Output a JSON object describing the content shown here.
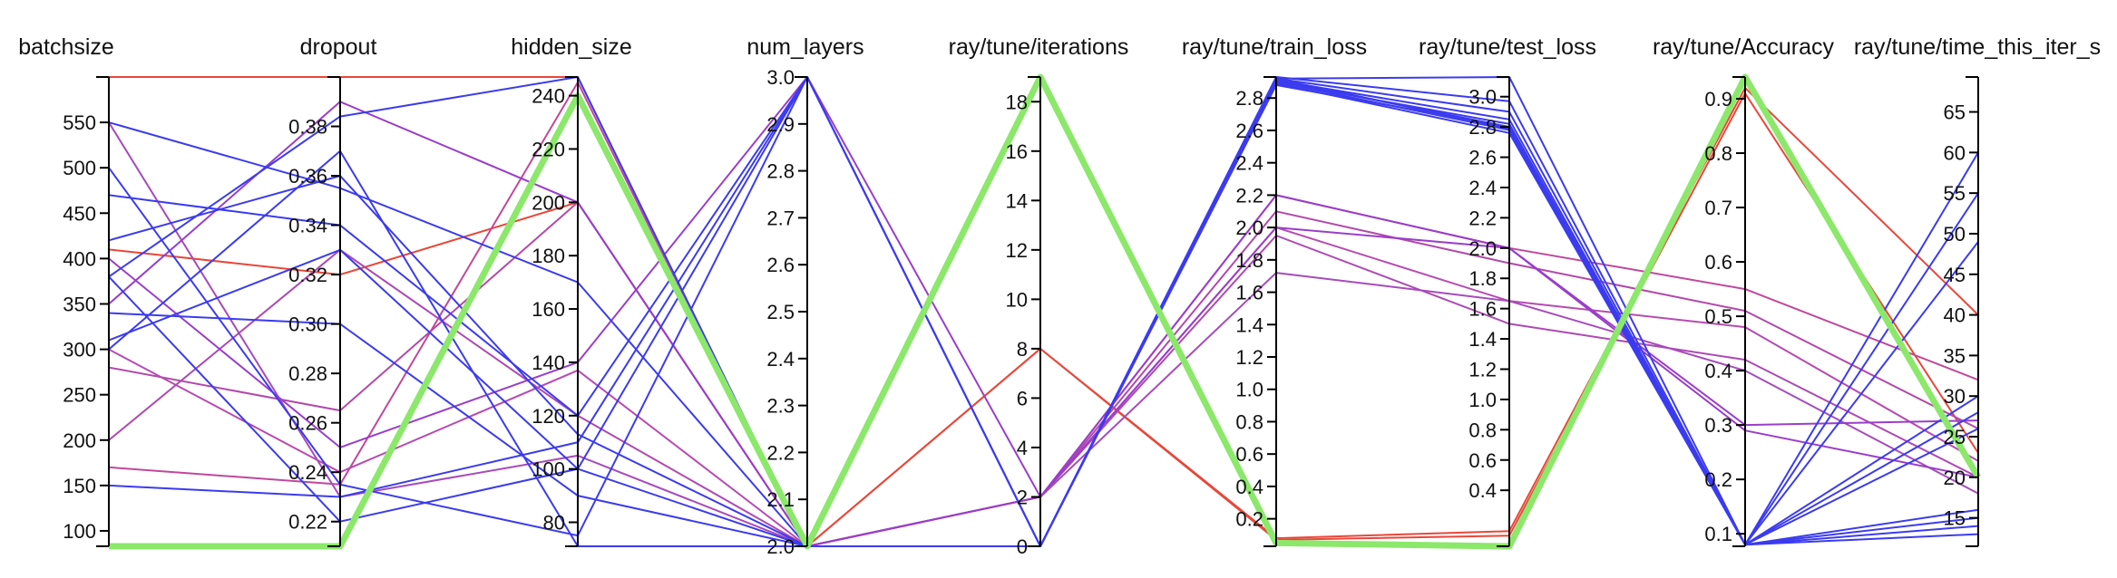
{
  "chart_data": {
    "type": "parallel_coordinates",
    "dimensions": [
      {
        "name": "batchsize",
        "min": 83,
        "max": 600,
        "ticks": [
          100,
          150,
          200,
          250,
          300,
          350,
          400,
          450,
          500,
          550
        ],
        "tick_labels": [
          "100",
          "150",
          "200",
          "250",
          "300",
          "350",
          "400",
          "450",
          "500",
          "550"
        ]
      },
      {
        "name": "dropout",
        "min": 0.21,
        "max": 0.4,
        "ticks": [
          0.22,
          0.24,
          0.26,
          0.28,
          0.3,
          0.32,
          0.34,
          0.36,
          0.38
        ],
        "tick_labels": [
          "0.22",
          "0.24",
          "0.26",
          "0.28",
          "0.30",
          "0.32",
          "0.34",
          "0.36",
          "0.38"
        ]
      },
      {
        "name": "hidden_size",
        "min": 71,
        "max": 247,
        "ticks": [
          80,
          100,
          120,
          140,
          160,
          180,
          200,
          220,
          240
        ],
        "tick_labels": [
          "80",
          "100",
          "120",
          "140",
          "160",
          "180",
          "200",
          "220",
          "240"
        ]
      },
      {
        "name": "num_layers",
        "min": 2.0,
        "max": 3.0,
        "ticks": [
          2.0,
          2.1,
          2.2,
          2.3,
          2.4,
          2.5,
          2.6,
          2.7,
          2.8,
          2.9,
          3.0
        ],
        "tick_labels": [
          "2.0",
          "2.1",
          "2.2",
          "2.3",
          "2.4",
          "2.5",
          "2.6",
          "2.7",
          "2.8",
          "2.9",
          "3.0"
        ]
      },
      {
        "name": "ray/tune/iterations",
        "min": 0,
        "max": 19,
        "ticks": [
          0,
          2,
          4,
          6,
          8,
          10,
          12,
          14,
          16,
          18
        ],
        "tick_labels": [
          "0",
          "2",
          "4",
          "6",
          "8",
          "10",
          "12",
          "14",
          "16",
          "18"
        ]
      },
      {
        "name": "ray/tune/train_loss",
        "min": 0.03,
        "max": 2.93,
        "ticks": [
          0.2,
          0.4,
          0.6,
          0.8,
          1.0,
          1.2,
          1.4,
          1.6,
          1.8,
          2.0,
          2.2,
          2.4,
          2.6,
          2.8
        ],
        "tick_labels": [
          "0.2",
          "0.4",
          "0.6",
          "0.8",
          "1.0",
          "1.2",
          "1.4",
          "1.6",
          "1.8",
          "2.0",
          "2.2",
          "2.4",
          "2.6",
          "2.8"
        ]
      },
      {
        "name": "ray/tune/test_loss",
        "min": 0.03,
        "max": 3.13,
        "ticks": [
          0.4,
          0.6,
          0.8,
          1.0,
          1.2,
          1.4,
          1.6,
          1.8,
          2.0,
          2.2,
          2.4,
          2.6,
          2.8,
          3.0
        ],
        "tick_labels": [
          "0.4",
          "0.6",
          "0.8",
          "1.0",
          "1.2",
          "1.4",
          "1.6",
          "1.8",
          "2.0",
          "2.2",
          "2.4",
          "2.6",
          "2.8",
          "3.0"
        ]
      },
      {
        "name": "ray/tune/Accuracy",
        "min": 0.077,
        "max": 0.94,
        "ticks": [
          0.1,
          0.2,
          0.3,
          0.4,
          0.5,
          0.6,
          0.7,
          0.8,
          0.9
        ],
        "tick_labels": [
          "0.1",
          "0.2",
          "0.3",
          "0.4",
          "0.5",
          "0.6",
          "0.7",
          "0.8",
          "0.9"
        ]
      },
      {
        "name": "ray/tune/time_this_iter_s",
        "min": 11.5,
        "max": 69.3,
        "ticks": [
          15,
          20,
          25,
          30,
          35,
          40,
          45,
          50,
          55,
          60,
          65
        ],
        "tick_labels": [
          "15",
          "20",
          "25",
          "30",
          "35",
          "40",
          "45",
          "50",
          "55",
          "60",
          "65"
        ]
      }
    ],
    "colors": {
      "low": "#2222ff",
      "high": "#ee3322",
      "best": "#88ee66",
      "axis": "#000000"
    },
    "records": [
      {
        "values": [
          600,
          0.4,
          247,
          2.0,
          8,
          0.08,
          0.13,
          0.92,
          40
        ],
        "color": "#e8473a",
        "width": 2
      },
      {
        "values": [
          410,
          0.32,
          200,
          2.0,
          8,
          0.07,
          0.1,
          0.91,
          23
        ],
        "color": "#e8473a",
        "width": 2
      },
      {
        "values": [
          170,
          0.235,
          245,
          2.0,
          2,
          2.2,
          2.0,
          0.55,
          32
        ],
        "color": "#c0489a",
        "width": 2
      },
      {
        "values": [
          280,
          0.265,
          200,
          2.0,
          2,
          2.1,
          1.9,
          0.51,
          26
        ],
        "color": "#b249a8",
        "width": 2
      },
      {
        "values": [
          300,
          0.24,
          137,
          2.0,
          2,
          2.0,
          1.65,
          0.48,
          22
        ],
        "color": "#b64bb0",
        "width": 2
      },
      {
        "values": [
          200,
          0.33,
          120,
          2.0,
          2,
          1.95,
          1.5,
          0.42,
          20
        ],
        "color": "#ad4ab2",
        "width": 2
      },
      {
        "values": [
          550,
          0.23,
          105,
          2.0,
          2,
          1.72,
          1.65,
          0.4,
          18
        ],
        "color": "#a64bbb",
        "width": 2
      },
      {
        "values": [
          350,
          0.39,
          200,
          2.0,
          2,
          2.0,
          2.0,
          0.3,
          27
        ],
        "color": "#9a3ec9",
        "width": 2
      },
      {
        "values": [
          400,
          0.25,
          140,
          3.0,
          2,
          2.2,
          2.0,
          0.29,
          20
        ],
        "color": "#9a3ec9",
        "width": 2
      },
      {
        "values": [
          83,
          0.21,
          240,
          2.0,
          19,
          0.05,
          0.03,
          0.94,
          20
        ],
        "color": "#8be86a",
        "width": 7
      },
      {
        "values": [
          380,
          0.384,
          247,
          2.0,
          0,
          2.93,
          2.97,
          0.08,
          60
        ],
        "color": "#3b3bef",
        "width": 2
      },
      {
        "values": [
          550,
          0.355,
          170,
          2.0,
          0,
          2.91,
          2.8,
          0.08,
          55
        ],
        "color": "#3b3bef",
        "width": 2
      },
      {
        "values": [
          470,
          0.34,
          120,
          3.0,
          0,
          2.92,
          2.9,
          0.08,
          49
        ],
        "color": "#3b3bef",
        "width": 2
      },
      {
        "values": [
          310,
          0.33,
          100,
          2.0,
          0,
          2.9,
          2.82,
          0.08,
          30
        ],
        "color": "#3b3bef",
        "width": 2
      },
      {
        "values": [
          150,
          0.23,
          110,
          3.0,
          0,
          2.92,
          3.13,
          0.08,
          28
        ],
        "color": "#3b3bef",
        "width": 2
      },
      {
        "values": [
          340,
          0.3,
          90,
          2.0,
          0,
          2.91,
          2.85,
          0.08,
          26
        ],
        "color": "#3b3bef",
        "width": 2
      },
      {
        "values": [
          420,
          0.36,
          113,
          2.0,
          0,
          2.89,
          2.76,
          0.08,
          16
        ],
        "color": "#3b3bef",
        "width": 2
      },
      {
        "values": [
          300,
          0.37,
          71,
          2.0,
          0,
          2.9,
          2.78,
          0.08,
          15
        ],
        "color": "#3b3bef",
        "width": 2
      },
      {
        "values": [
          500,
          0.235,
          75,
          3.0,
          0,
          2.92,
          2.79,
          0.08,
          14
        ],
        "color": "#3b3bef",
        "width": 2
      },
      {
        "values": [
          380,
          0.22,
          100,
          3.0,
          0,
          2.88,
          2.8,
          0.08,
          13
        ],
        "color": "#3b3bef",
        "width": 2
      }
    ]
  }
}
